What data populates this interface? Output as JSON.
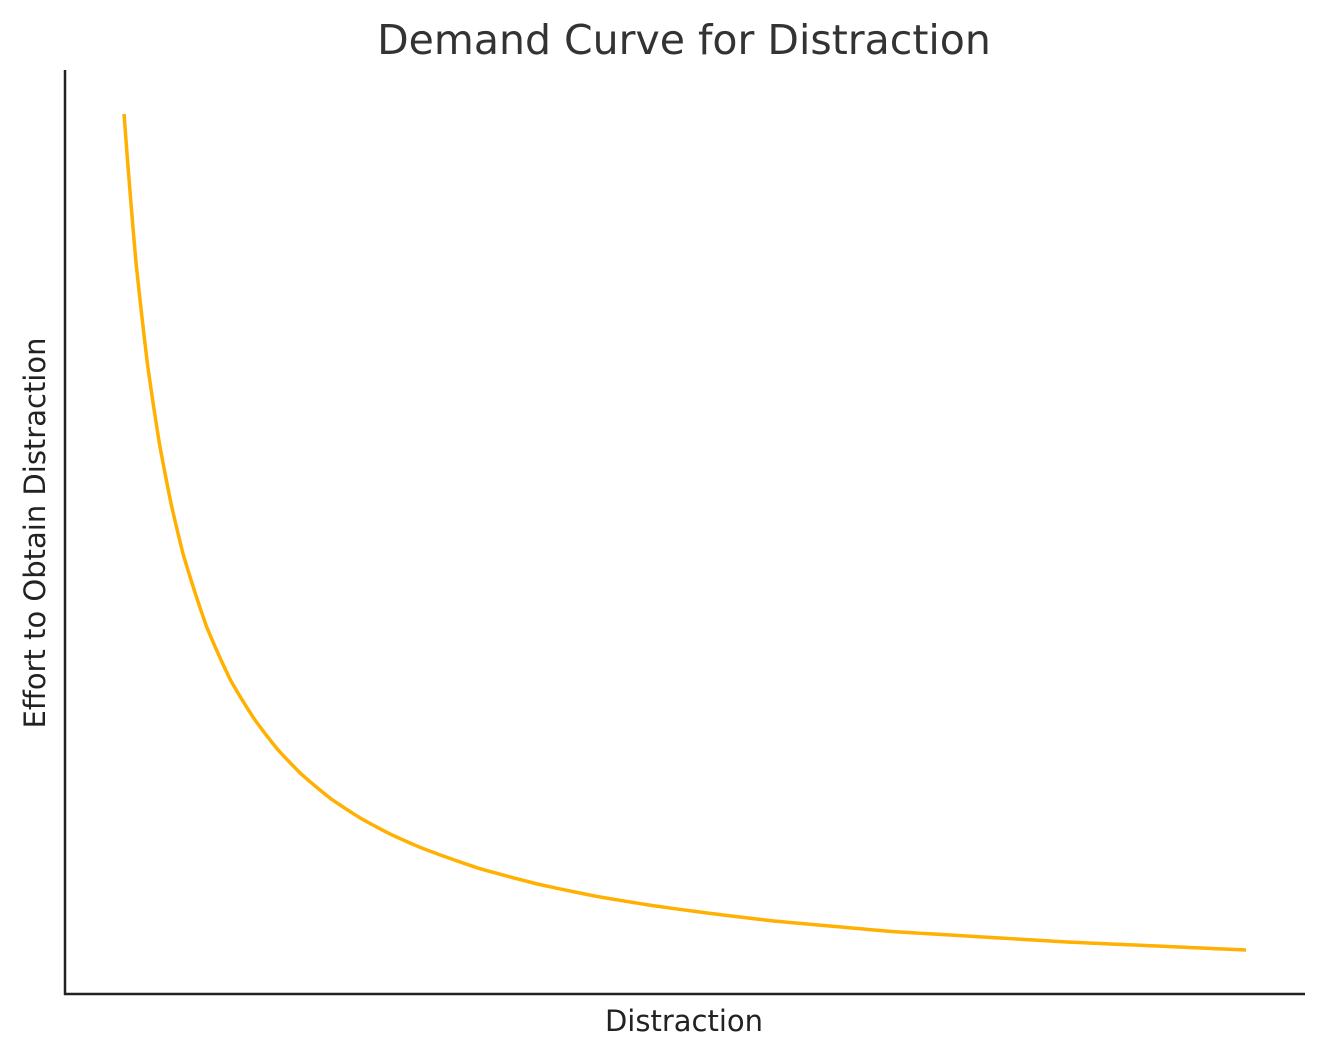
{
  "chart_data": {
    "type": "line",
    "title": "Demand Curve for Distraction",
    "xlabel": "Distraction",
    "ylabel": "Effort to Obtain Distraction",
    "xlim": [
      0,
      10.5
    ],
    "ylim": [
      0,
      10.5
    ],
    "grid": false,
    "axes_visible": [
      "left",
      "bottom"
    ],
    "ticks_visible": false,
    "series": [
      {
        "color": "#FFB000",
        "x": [
          0.5,
          0.6,
          0.7,
          0.8,
          0.9,
          1.0,
          1.2,
          1.4,
          1.6,
          1.8,
          2.0,
          2.25,
          2.5,
          2.75,
          3.0,
          3.5,
          4.0,
          4.5,
          5.0,
          5.5,
          6.0,
          6.5,
          7.0,
          7.5,
          8.0,
          8.5,
          9.0,
          9.5,
          10.0
        ],
        "y": [
          10.0,
          8.33,
          7.14,
          6.25,
          5.56,
          5.0,
          4.17,
          3.57,
          3.13,
          2.78,
          2.5,
          2.22,
          2.0,
          1.82,
          1.67,
          1.43,
          1.25,
          1.11,
          1.0,
          0.91,
          0.83,
          0.77,
          0.71,
          0.67,
          0.63,
          0.59,
          0.56,
          0.53,
          0.5
        ]
      }
    ]
  }
}
